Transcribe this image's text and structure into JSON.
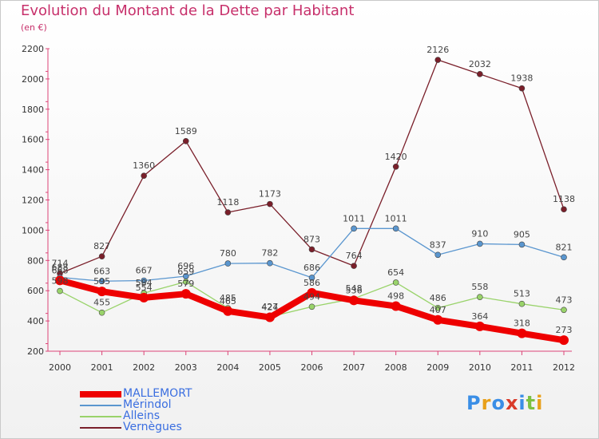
{
  "title": "Evolution du Montant de la Dette par Habitant",
  "subtitle": "(en €)",
  "logo": "Proxiti",
  "chart_data": {
    "type": "line",
    "title": "Evolution du Montant de la Dette par Habitant",
    "subtitle": "(en €)",
    "x": [
      "2000",
      "2001",
      "2002",
      "2003",
      "2004",
      "2005",
      "2006",
      "2007",
      "2008",
      "2009",
      "2010",
      "2011",
      "2012"
    ],
    "ylim": [
      200,
      2200
    ],
    "yticks": [
      200,
      400,
      600,
      800,
      1000,
      1200,
      1400,
      1600,
      1800,
      2000,
      2200
    ],
    "grid": false,
    "legend_position": "bottom-left",
    "series": [
      {
        "name": "MALLEMORT",
        "color": "#ee0000",
        "values": [
          668,
          595,
          554,
          579,
          465,
          424,
          586,
          536,
          498,
          407,
          364,
          318,
          273
        ]
      },
      {
        "name": "Mérindol",
        "color": "#5a96cf",
        "values": [
          688,
          663,
          667,
          696,
          780,
          782,
          686,
          1011,
          1011,
          837,
          910,
          905,
          821
        ]
      },
      {
        "name": "Alleins",
        "color": "#99d36a",
        "values": [
          598,
          455,
          584,
          659,
          485,
          427,
          494,
          548,
          654,
          486,
          558,
          513,
          473
        ]
      },
      {
        "name": "Vernègues",
        "color": "#7a1f2a",
        "values": [
          714,
          827,
          1360,
          1589,
          1118,
          1173,
          873,
          764,
          1420,
          2126,
          2032,
          1938,
          1138
        ]
      }
    ]
  }
}
